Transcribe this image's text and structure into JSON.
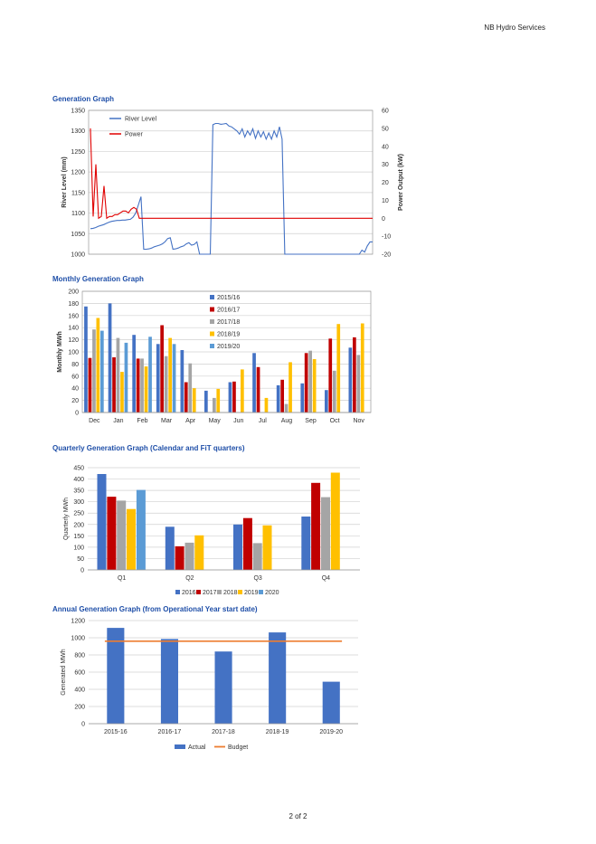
{
  "header": "NB Hydro Services",
  "footer": "2 of 2",
  "sections": {
    "generation": "Generation Graph",
    "monthly": "Monthly Generation Graph",
    "quarterly": "Quarterly Generation Graph (Calendar and FiT quarters)",
    "annual": "Annual Generation Graph (from Operational Year start date)"
  },
  "chart_data": [
    {
      "type": "line",
      "title": "Generation Graph",
      "ylabel": "River Level (mm)",
      "y2label": "Power Output (kW)",
      "ylim": [
        1000,
        1350
      ],
      "y2lim": [
        -20,
        60
      ],
      "yticks": [
        "1000",
        "1050",
        "1100",
        "1150",
        "1200",
        "1250",
        "1300",
        "1350"
      ],
      "y2ticks": [
        "-20",
        "-10",
        "0",
        "10",
        "20",
        "30",
        "40",
        "50",
        "60"
      ],
      "grid": true,
      "legend_position": "top-left",
      "colors": {
        "river": "#4472c4",
        "power": "#e00000"
      },
      "series": [
        {
          "name": "River Level",
          "axis": "left",
          "values": [
            1062,
            1063,
            1065,
            1068,
            1070,
            1072,
            1075,
            1078,
            1080,
            1081,
            1082,
            1082,
            1083,
            1083,
            1084,
            1085,
            1090,
            1100,
            1120,
            1140,
            1012,
            1012,
            1013,
            1015,
            1018,
            1020,
            1022,
            1025,
            1030,
            1038,
            1040,
            1012,
            1013,
            1015,
            1018,
            1020,
            1025,
            1028,
            1022,
            1024,
            1030,
            995,
            995,
            995,
            995,
            995,
            1315,
            1318,
            1318,
            1316,
            1317,
            1318,
            1312,
            1310,
            1305,
            1300,
            1292,
            1305,
            1285,
            1300,
            1290,
            1305,
            1282,
            1300,
            1285,
            1298,
            1280,
            1295,
            1280,
            1300,
            1285,
            1310,
            1280,
            995,
            995,
            995,
            995,
            995,
            995,
            995,
            995,
            995,
            995,
            995,
            995,
            995,
            995,
            995,
            995,
            995,
            995,
            995,
            995,
            995,
            995,
            995,
            995,
            995,
            995,
            995,
            995,
            1000,
            1010,
            1005,
            1020,
            1030,
            1030
          ]
        },
        {
          "name": "Power",
          "axis": "right",
          "values": [
            50,
            1,
            30,
            0,
            1,
            18,
            0,
            1,
            1,
            2,
            2,
            3,
            4,
            4,
            3,
            5,
            6,
            5,
            0,
            0,
            0,
            0,
            0,
            0,
            0,
            0,
            0,
            0,
            0,
            0,
            0,
            0,
            0,
            0,
            0,
            0,
            0,
            0,
            0,
            0,
            0,
            0,
            0,
            0,
            0,
            0,
            0,
            0,
            0,
            0,
            0,
            0,
            0,
            0,
            0,
            0,
            0,
            0,
            0,
            0,
            0,
            0,
            0,
            0,
            0,
            0,
            0,
            0,
            0,
            0,
            0,
            0,
            0,
            0,
            0,
            0,
            0,
            0,
            0,
            0,
            0,
            0,
            0,
            0,
            0,
            0,
            0,
            0,
            0,
            0,
            0,
            0,
            0,
            0,
            0,
            0,
            0,
            0,
            0,
            0,
            0,
            0,
            0,
            0,
            0
          ]
        }
      ]
    },
    {
      "type": "bar",
      "title": "Monthly Generation Graph",
      "ylabel": "Monthly MWh",
      "ylim": [
        0,
        200
      ],
      "yticks": [
        "0",
        "20",
        "40",
        "60",
        "80",
        "100",
        "120",
        "140",
        "160",
        "180",
        "200"
      ],
      "categories": [
        "Dec",
        "Jan",
        "Feb",
        "Mar",
        "Apr",
        "May",
        "Jun",
        "Jul",
        "Aug",
        "Sep",
        "Oct",
        "Nov"
      ],
      "grid": true,
      "legend_position": "top-right",
      "series": [
        {
          "name": "2015/16",
          "color": "#4472c4",
          "values": [
            175,
            180,
            128,
            113,
            103,
            36,
            50,
            98,
            45,
            48,
            37,
            107
          ]
        },
        {
          "name": "2016/17",
          "color": "#c00000",
          "values": [
            90,
            91,
            89,
            144,
            50,
            0,
            51,
            75,
            54,
            98,
            122,
            124
          ]
        },
        {
          "name": "2017/18",
          "color": "#a5a5a5",
          "values": [
            137,
            123,
            89,
            93,
            81,
            24,
            0,
            0,
            14,
            102,
            69,
            95
          ]
        },
        {
          "name": "2018/19",
          "color": "#ffc000",
          "values": [
            156,
            67,
            76,
            123,
            40,
            39,
            71,
            24,
            83,
            88,
            146,
            147
          ]
        },
        {
          "name": "2019/20",
          "color": "#5b9bd5",
          "values": [
            135,
            115,
            125,
            113,
            0,
            0,
            0,
            0,
            0,
            0,
            0,
            0
          ]
        }
      ]
    },
    {
      "type": "bar",
      "title": "Quarterly Generation Graph (Calendar and FiT quarters)",
      "ylabel": "Quarterly MWh",
      "ylim": [
        0,
        450
      ],
      "yticks": [
        "0",
        "50",
        "100",
        "150",
        "200",
        "250",
        "300",
        "350",
        "400",
        "450"
      ],
      "categories": [
        "Q1",
        "Q2",
        "Q3",
        "Q4"
      ],
      "grid": true,
      "legend_position": "bottom",
      "series": [
        {
          "name": "2016",
          "color": "#4472c4",
          "values": [
            422,
            190,
            200,
            235
          ]
        },
        {
          "name": "2017",
          "color": "#c00000",
          "values": [
            322,
            104,
            228,
            383
          ]
        },
        {
          "name": "2018",
          "color": "#a5a5a5",
          "values": [
            305,
            120,
            118,
            320
          ]
        },
        {
          "name": "2019",
          "color": "#ffc000",
          "values": [
            268,
            152,
            196,
            428
          ]
        },
        {
          "name": "2020",
          "color": "#5b9bd5",
          "values": [
            352,
            0,
            0,
            0
          ]
        }
      ]
    },
    {
      "type": "bar",
      "title": "Annual Generation Graph (from Operational Year start date)",
      "ylabel": "Generated MWh",
      "ylim": [
        0,
        1200
      ],
      "yticks": [
        "0",
        "200",
        "400",
        "600",
        "800",
        "1000",
        "1200"
      ],
      "categories": [
        "2015-16",
        "2016-17",
        "2017-18",
        "2018-19",
        "2019-20"
      ],
      "grid": true,
      "legend_position": "bottom",
      "series": [
        {
          "name": "Actual",
          "color": "#4472c4",
          "values": [
            1115,
            985,
            840,
            1062,
            488
          ]
        },
        {
          "name": "Budget",
          "color": "#ed7d31",
          "type": "line",
          "values": [
            960,
            960,
            960,
            960,
            960
          ]
        }
      ]
    }
  ]
}
